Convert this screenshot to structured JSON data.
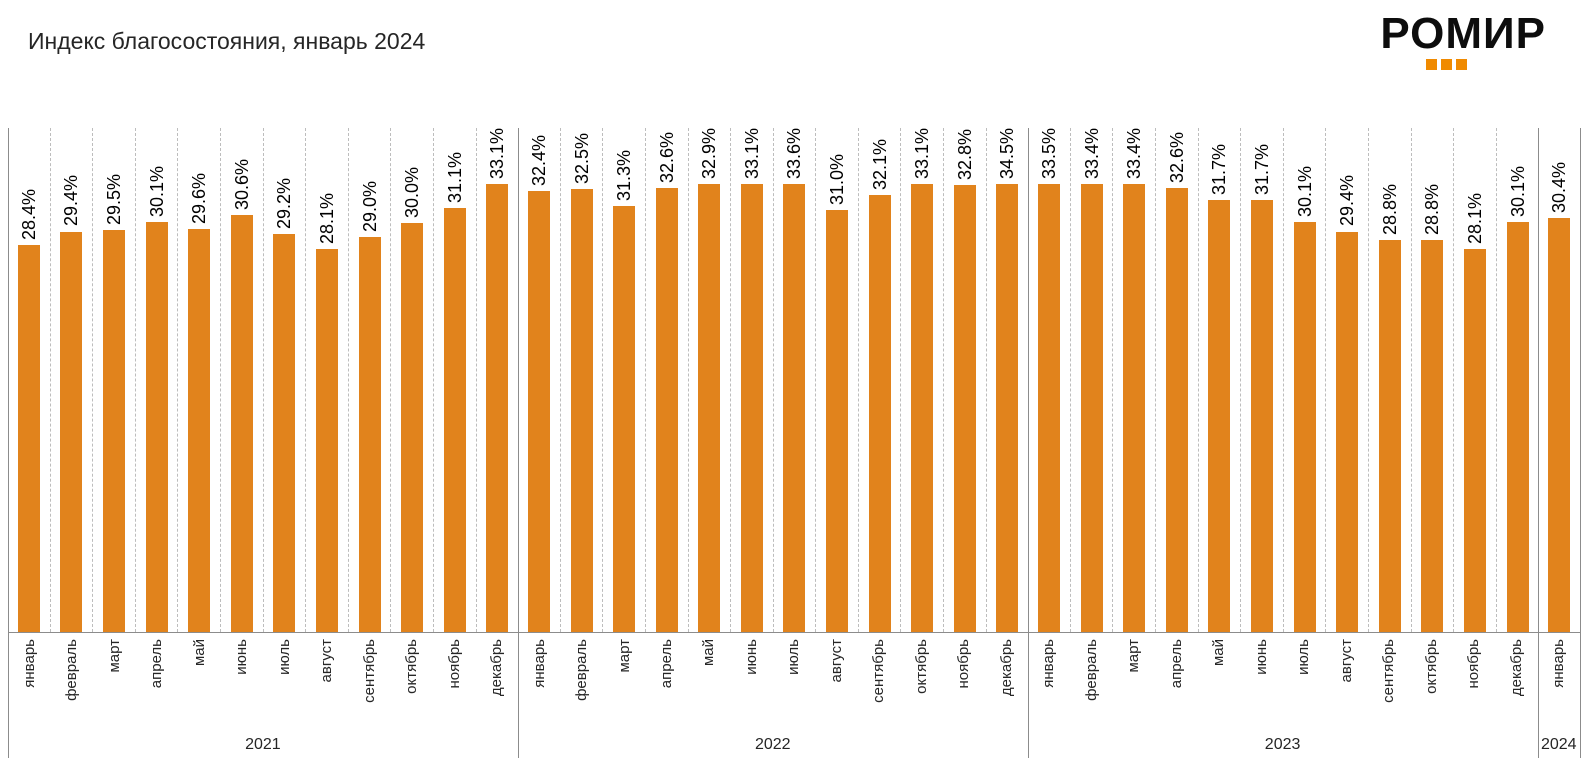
{
  "logo": {
    "text": "РОМИР"
  },
  "colors": {
    "bar": "#E1831C",
    "logo_accent": "#F08A00",
    "grid_dashed": "#BDBDBD",
    "grid_solid": "#8C8C8C"
  },
  "chart_data": {
    "type": "bar",
    "title": "Индекс благосостояния, январь 2024",
    "unit": "%",
    "ylim": [
      0,
      37
    ],
    "legend": "none",
    "grid": "vertical dashed line between each category; solid separators between years; horizontal axis line at bottom",
    "value_labels": "rotated 90deg above each bar, one decimal, % suffix",
    "category_labels": "rotated 90deg below axis, grouped by year",
    "groups": [
      {
        "year": "2021",
        "months": [
          "январь",
          "февраль",
          "март",
          "апрель",
          "май",
          "июнь",
          "июль",
          "август",
          "сентябрь",
          "октябрь",
          "ноябрь",
          "декабрь"
        ],
        "values": [
          28.4,
          29.4,
          29.5,
          30.1,
          29.6,
          30.6,
          29.2,
          28.1,
          29.0,
          30.0,
          31.1,
          33.1
        ]
      },
      {
        "year": "2022",
        "months": [
          "январь",
          "февраль",
          "март",
          "апрель",
          "май",
          "июнь",
          "июль",
          "август",
          "сентябрь",
          "октябрь",
          "ноябрь",
          "декабрь"
        ],
        "values": [
          32.4,
          32.5,
          31.3,
          32.6,
          32.9,
          33.1,
          33.6,
          31.0,
          32.1,
          33.1,
          32.8,
          34.5
        ]
      },
      {
        "year": "2023",
        "months": [
          "январь",
          "февраль",
          "март",
          "апрель",
          "май",
          "июнь",
          "июль",
          "август",
          "сентябрь",
          "октябрь",
          "ноябрь",
          "декабрь"
        ],
        "values": [
          33.5,
          33.4,
          33.4,
          32.6,
          31.7,
          31.7,
          30.1,
          29.4,
          28.8,
          28.8,
          28.1,
          30.1
        ]
      },
      {
        "year": "2024",
        "months": [
          "январь"
        ],
        "values": [
          30.4
        ]
      }
    ]
  }
}
